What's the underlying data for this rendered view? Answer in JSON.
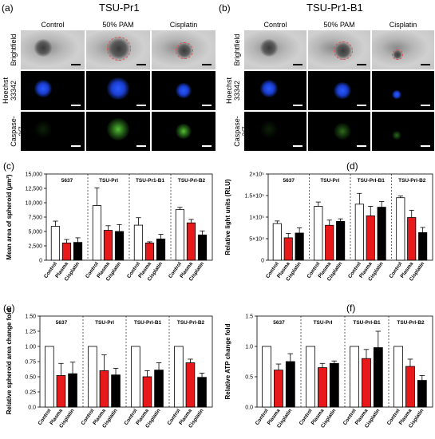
{
  "images": {
    "a": {
      "label": "(a)",
      "title": "TSU-Pr1",
      "columns": [
        "Control",
        "50% PAM",
        "Cisplatin"
      ],
      "rows": [
        "Brightfield",
        "Hoechst 33342",
        "Caspase-3/7"
      ]
    },
    "b": {
      "label": "(b)",
      "title": "TSU-Pr1-B1",
      "columns": [
        "Control",
        "50% PAM",
        "Cisplatin"
      ],
      "rows": [
        "Brightfield",
        "Hoechst 33342",
        "Caspase-3/7"
      ]
    }
  },
  "colors": {
    "control": "#ffffff",
    "plasma": "#e8191b",
    "cisplatin": "#000000",
    "hoechst": "#2a5cff",
    "caspase": "#5fd43a"
  },
  "chart_data": [
    {
      "id": "c",
      "panel_label": "(c)",
      "type": "bar",
      "ylabel": "Mean area of spheroid (μm²)",
      "yticks": [
        "0",
        "2,500",
        "5,000",
        "7,500",
        "10,000",
        "12,500",
        "15,000"
      ],
      "ylim": [
        0,
        15000
      ],
      "groups": [
        "5637",
        "TSU-PrI",
        "TSU-Pr1-B1",
        "TSU-PrI-B2"
      ],
      "categories": [
        "Control",
        "Plasma",
        "Cisplatin"
      ],
      "values": [
        [
          5900,
          3000,
          3100
        ],
        [
          9500,
          5200,
          5000
        ],
        [
          6100,
          3000,
          3700
        ],
        [
          8800,
          6500,
          4400
        ]
      ],
      "errors": [
        [
          900,
          600,
          800
        ],
        [
          3100,
          800,
          1200
        ],
        [
          1300,
          200,
          800
        ],
        [
          400,
          600,
          700
        ]
      ]
    },
    {
      "id": "d",
      "panel_label": "(d)",
      "type": "bar",
      "ylabel": "Relative light units (RLU)",
      "yticks": [
        "0",
        "5×10⁴",
        "1×10⁵",
        "1.5×10⁵",
        "2×10⁵"
      ],
      "ylim": [
        0,
        200000
      ],
      "groups": [
        "5637",
        "TSU-PrI",
        "TSU-PrI-B1",
        "TSU-PrI-B2"
      ],
      "categories": [
        "Control",
        "Plasma",
        "Cisplatin"
      ],
      "values": [
        [
          85000,
          52000,
          63000
        ],
        [
          125000,
          81000,
          90000
        ],
        [
          130000,
          103000,
          123000
        ],
        [
          145000,
          99000,
          64000
        ]
      ],
      "errors": [
        [
          6000,
          10000,
          12000
        ],
        [
          10000,
          12000,
          6000
        ],
        [
          25000,
          22000,
          13000
        ],
        [
          4000,
          17000,
          12000
        ]
      ]
    },
    {
      "id": "e",
      "panel_label": "(e)",
      "type": "bar",
      "ylabel": "Relative spheroid area change fold",
      "yticks": [
        "0.0",
        "0.25",
        "0.50",
        "0.75",
        "1.00",
        "1.25",
        "1.50"
      ],
      "ylim": [
        0,
        1.5
      ],
      "groups": [
        "5637",
        "TSU-PrI",
        "TSU-PrI-B1",
        "TSU-PrI-B2"
      ],
      "categories": [
        "Control",
        "Plasma",
        "Cisplatin"
      ],
      "values": [
        [
          1.0,
          0.52,
          0.55
        ],
        [
          1.0,
          0.6,
          0.53
        ],
        [
          1.0,
          0.5,
          0.61
        ],
        [
          1.0,
          0.73,
          0.49
        ]
      ],
      "errors": [
        [
          0,
          0.2,
          0.19
        ],
        [
          0,
          0.26,
          0.11
        ],
        [
          0,
          0.1,
          0.12
        ],
        [
          0,
          0.06,
          0.07
        ]
      ]
    },
    {
      "id": "f",
      "panel_label": "(f)",
      "type": "bar",
      "ylabel": "Relative ATP change fold",
      "yticks": [
        "0.0",
        "0.5",
        "1.0",
        "1.5"
      ],
      "ylim": [
        0,
        1.5
      ],
      "groups": [
        "5637",
        "TSU-PrI",
        "TSU-PrI-B1",
        "TSU-PrI-B2"
      ],
      "categories": [
        "Control",
        "Plasma",
        "Cisplatin"
      ],
      "values": [
        [
          1.0,
          0.61,
          0.75
        ],
        [
          1.0,
          0.65,
          0.72
        ],
        [
          1.0,
          0.8,
          0.98
        ],
        [
          1.0,
          0.67,
          0.44
        ]
      ],
      "errors": [
        [
          0,
          0.1,
          0.13
        ],
        [
          0,
          0.07,
          0.04
        ],
        [
          0,
          0.15,
          0.27
        ],
        [
          0,
          0.12,
          0.08
        ]
      ]
    }
  ]
}
